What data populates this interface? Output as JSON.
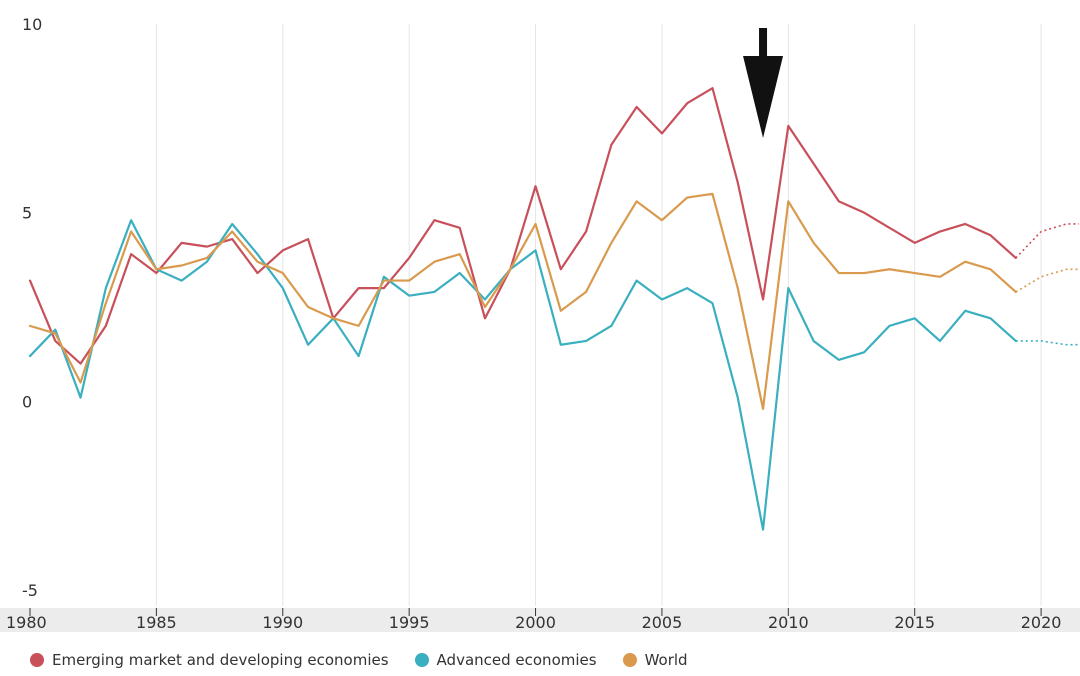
{
  "chart_data": {
    "type": "line",
    "title": "",
    "xlabel": "",
    "ylabel": "",
    "xlim": [
      1980,
      2021.5
    ],
    "ylim": [
      -5,
      10
    ],
    "y_ticks": [
      "10",
      "5",
      "0",
      "-5"
    ],
    "x_ticks": [
      "1980",
      "1985",
      "1990",
      "1995",
      "2000",
      "2005",
      "2010",
      "2015",
      "2020"
    ],
    "grid": "vertical",
    "legend_position": "bottom-left",
    "annotation": "down-arrow-at-2009",
    "x": [
      1980,
      1981,
      1982,
      1983,
      1984,
      1985,
      1986,
      1987,
      1988,
      1989,
      1990,
      1991,
      1992,
      1993,
      1994,
      1995,
      1996,
      1997,
      1998,
      1999,
      2000,
      2001,
      2002,
      2003,
      2004,
      2005,
      2006,
      2007,
      2008,
      2009,
      2010,
      2011,
      2012,
      2013,
      2014,
      2015,
      2016,
      2017,
      2018,
      2019
    ],
    "projection_x": [
      2019,
      2020,
      2021,
      2021.5
    ],
    "series": [
      {
        "name": "Emerging market and developing economies",
        "color": "#c8505a",
        "values": [
          3.2,
          1.6,
          1.0,
          2.0,
          3.9,
          3.4,
          4.2,
          4.1,
          4.3,
          3.4,
          4.0,
          4.3,
          2.2,
          3.0,
          3.0,
          3.8,
          4.8,
          4.6,
          2.2,
          3.5,
          5.7,
          3.5,
          4.5,
          6.8,
          7.8,
          7.1,
          7.9,
          8.3,
          5.8,
          2.7,
          7.3,
          6.3,
          5.3,
          5.0,
          4.6,
          4.2,
          4.5,
          4.7,
          4.4,
          3.8
        ],
        "projection": [
          3.8,
          4.5,
          4.7,
          4.7
        ]
      },
      {
        "name": "Advanced economies",
        "color": "#3aafc0",
        "values": [
          1.2,
          1.9,
          0.1,
          3.0,
          4.8,
          3.5,
          3.2,
          3.7,
          4.7,
          3.9,
          3.0,
          1.5,
          2.2,
          1.2,
          3.3,
          2.8,
          2.9,
          3.4,
          2.7,
          3.5,
          4.0,
          1.5,
          1.6,
          2.0,
          3.2,
          2.7,
          3.0,
          2.6,
          0.1,
          -3.4,
          3.0,
          1.6,
          1.1,
          1.3,
          2.0,
          2.2,
          1.6,
          2.4,
          2.2,
          1.6
        ],
        "projection": [
          1.6,
          1.6,
          1.5,
          1.5
        ]
      },
      {
        "name": "World",
        "color": "#d99a4e",
        "values": [
          2.0,
          1.8,
          0.5,
          2.6,
          4.5,
          3.5,
          3.6,
          3.8,
          4.5,
          3.7,
          3.4,
          2.5,
          2.2,
          2.0,
          3.2,
          3.2,
          3.7,
          3.9,
          2.5,
          3.5,
          4.7,
          2.4,
          2.9,
          4.2,
          5.3,
          4.8,
          5.4,
          5.5,
          3.0,
          -0.2,
          5.3,
          4.2,
          3.4,
          3.4,
          3.5,
          3.4,
          3.3,
          3.7,
          3.5,
          2.9
        ],
        "projection": [
          2.9,
          3.3,
          3.5,
          3.5
        ]
      }
    ]
  }
}
